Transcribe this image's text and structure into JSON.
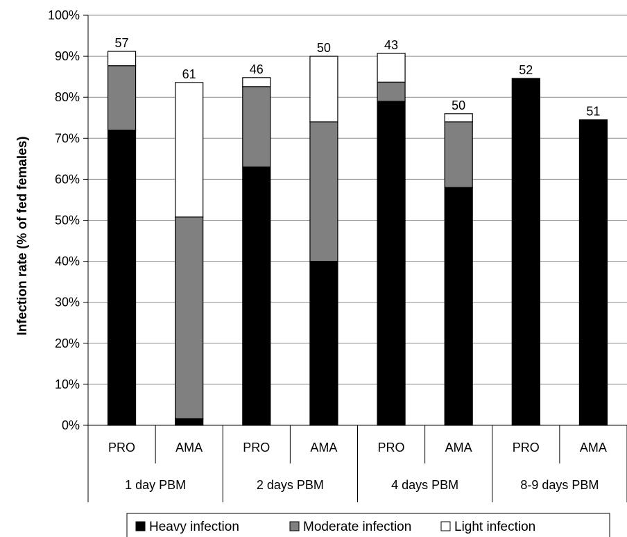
{
  "chart_data": {
    "type": "bar",
    "stacked": true,
    "ylabel": "Infection rate (% of fed females)",
    "ylim": [
      0,
      100
    ],
    "yticks": [
      "0%",
      "10%",
      "20%",
      "30%",
      "40%",
      "50%",
      "60%",
      "70%",
      "80%",
      "90%",
      "100%"
    ],
    "categories": [
      "PRO",
      "AMA",
      "PRO",
      "AMA",
      "PRO",
      "AMA",
      "PRO",
      "AMA"
    ],
    "groups": [
      "1 day PBM",
      "2 days PBM",
      "4 days PBM",
      "8-9 days PBM"
    ],
    "sample_sizes": [
      "57",
      "61",
      "46",
      "50",
      "43",
      "50",
      "52",
      "51"
    ],
    "series": [
      {
        "name": "Heavy infection",
        "color": "#000000",
        "values": [
          72,
          1.6,
          63,
          40,
          79,
          58,
          84.6,
          74.5
        ]
      },
      {
        "name": "Moderate infection",
        "color": "#808080",
        "values": [
          15.7,
          49.2,
          19.6,
          34,
          4.7,
          16,
          0,
          0
        ]
      },
      {
        "name": "Light infection",
        "color": "#ffffff",
        "values": [
          3.5,
          32.8,
          2.2,
          16,
          7,
          2,
          0,
          0
        ]
      }
    ],
    "grid": true,
    "legend": "bottom"
  }
}
